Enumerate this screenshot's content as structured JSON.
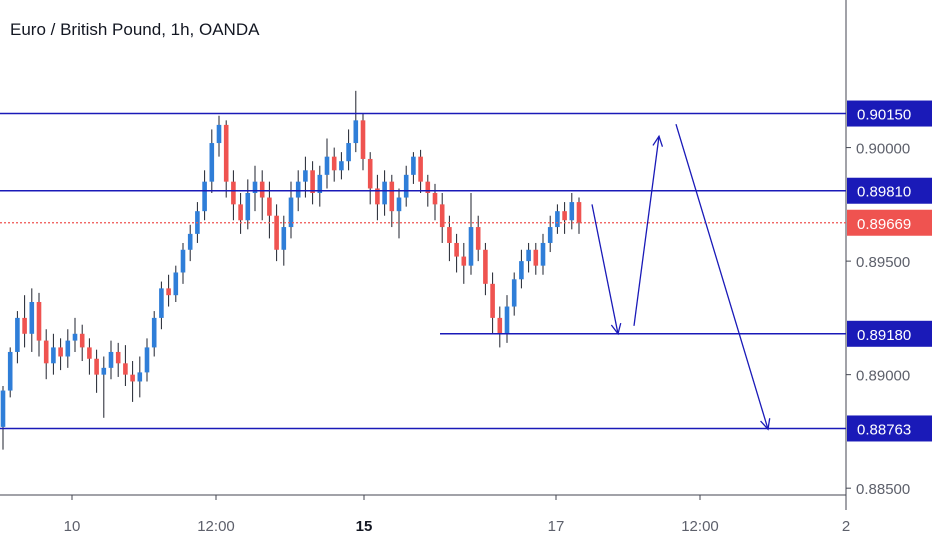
{
  "header": {
    "title": "Euro / British Pound, 1h, OANDA"
  },
  "colors": {
    "up": "#2f7ed8",
    "down": "#ef5350",
    "level_line": "#1a1ab8",
    "current_price": "#ef5350",
    "axis_text": "#5d606b",
    "grid": "#e0e3eb"
  },
  "chart_data": {
    "type": "candlestick",
    "title": "Euro / British Pound, 1h, OANDA",
    "symbol": "EURGBP",
    "timeframe": "1h",
    "source": "OANDA",
    "x_tick_labels": [
      "10",
      "12:00",
      "15",
      "17",
      "12:00",
      "2"
    ],
    "y_tick_labels": [
      "0.90000",
      "0.89500",
      "0.89000",
      "0.88500"
    ],
    "y_ticks": [
      0.9,
      0.895,
      0.89,
      0.885
    ],
    "ylim": [
      0.8847,
      0.9065
    ],
    "levels": [
      {
        "name": "resistance-high",
        "value": 0.9015,
        "label": "0.90150",
        "extent": "full"
      },
      {
        "name": "resistance",
        "value": 0.8981,
        "label": "0.89810",
        "extent": "full"
      },
      {
        "name": "support",
        "value": 0.8918,
        "label": "0.89180",
        "extent": "partial"
      },
      {
        "name": "support-low",
        "value": 0.88763,
        "label": "0.88763",
        "extent": "full"
      }
    ],
    "current_price": {
      "value": 0.89669,
      "label": "0.89669"
    },
    "projection_path": [
      0.8975,
      0.8918,
      0.9005,
      0.8876
    ],
    "candles": [
      [
        0.8877,
        0.8893,
        0.8867,
        0.8895
      ],
      [
        0.8893,
        0.891,
        0.889,
        0.8912
      ],
      [
        0.891,
        0.8925,
        0.8905,
        0.8928
      ],
      [
        0.8925,
        0.8918,
        0.8912,
        0.8935
      ],
      [
        0.8918,
        0.8932,
        0.891,
        0.8938
      ],
      [
        0.8932,
        0.8915,
        0.8908,
        0.8936
      ],
      [
        0.8915,
        0.8905,
        0.8898,
        0.892
      ],
      [
        0.8905,
        0.8912,
        0.89,
        0.8918
      ],
      [
        0.8912,
        0.8908,
        0.8902,
        0.8916
      ],
      [
        0.8908,
        0.8915,
        0.8903,
        0.892
      ],
      [
        0.8915,
        0.8918,
        0.891,
        0.8925
      ],
      [
        0.8918,
        0.8912,
        0.8906,
        0.8922
      ],
      [
        0.8912,
        0.8907,
        0.89,
        0.8916
      ],
      [
        0.8907,
        0.89,
        0.8892,
        0.8911
      ],
      [
        0.89,
        0.8903,
        0.8881,
        0.8908
      ],
      [
        0.8903,
        0.891,
        0.8898,
        0.8915
      ],
      [
        0.891,
        0.8905,
        0.8899,
        0.8914
      ],
      [
        0.8905,
        0.89,
        0.8895,
        0.8913
      ],
      [
        0.89,
        0.8897,
        0.8888,
        0.8906
      ],
      [
        0.8897,
        0.8901,
        0.889,
        0.8908
      ],
      [
        0.8901,
        0.8912,
        0.8897,
        0.8916
      ],
      [
        0.8912,
        0.8925,
        0.8908,
        0.8928
      ],
      [
        0.8925,
        0.8938,
        0.892,
        0.8941
      ],
      [
        0.8938,
        0.8935,
        0.893,
        0.8944
      ],
      [
        0.8935,
        0.8945,
        0.8932,
        0.8948
      ],
      [
        0.8945,
        0.8955,
        0.894,
        0.8958
      ],
      [
        0.8955,
        0.8962,
        0.895,
        0.8966
      ],
      [
        0.8962,
        0.8972,
        0.8958,
        0.8976
      ],
      [
        0.8972,
        0.8985,
        0.8968,
        0.899
      ],
      [
        0.8985,
        0.9002,
        0.898,
        0.9008
      ],
      [
        0.9002,
        0.901,
        0.8996,
        0.9014
      ],
      [
        0.901,
        0.8985,
        0.8978,
        0.9012
      ],
      [
        0.8985,
        0.8975,
        0.8968,
        0.899
      ],
      [
        0.8975,
        0.8968,
        0.8962,
        0.898
      ],
      [
        0.8968,
        0.898,
        0.8964,
        0.8986
      ],
      [
        0.898,
        0.8985,
        0.8972,
        0.8992
      ],
      [
        0.8985,
        0.8978,
        0.8968,
        0.899
      ],
      [
        0.8978,
        0.897,
        0.896,
        0.8985
      ],
      [
        0.897,
        0.8955,
        0.895,
        0.8975
      ],
      [
        0.8955,
        0.8965,
        0.8948,
        0.897
      ],
      [
        0.8965,
        0.8978,
        0.896,
        0.8985
      ],
      [
        0.8978,
        0.8985,
        0.8972,
        0.899
      ],
      [
        0.8985,
        0.899,
        0.8978,
        0.8996
      ],
      [
        0.899,
        0.898,
        0.8975,
        0.8994
      ],
      [
        0.898,
        0.8988,
        0.8974,
        0.8992
      ],
      [
        0.8988,
        0.8996,
        0.8982,
        0.9004
      ],
      [
        0.8996,
        0.899,
        0.8985,
        0.9
      ],
      [
        0.899,
        0.8994,
        0.8986,
        0.8998
      ],
      [
        0.8994,
        0.9002,
        0.899,
        0.9008
      ],
      [
        0.9002,
        0.9012,
        0.8998,
        0.9025
      ],
      [
        0.9012,
        0.8995,
        0.899,
        0.9015
      ],
      [
        0.8995,
        0.8982,
        0.8975,
        0.8998
      ],
      [
        0.8982,
        0.8975,
        0.8968,
        0.8988
      ],
      [
        0.8975,
        0.8985,
        0.897,
        0.899
      ],
      [
        0.8985,
        0.8972,
        0.8965,
        0.8988
      ],
      [
        0.8972,
        0.8978,
        0.896,
        0.8982
      ],
      [
        0.8978,
        0.8988,
        0.8974,
        0.8992
      ],
      [
        0.8988,
        0.8996,
        0.8984,
        0.8998
      ],
      [
        0.8996,
        0.8985,
        0.898,
        0.8999
      ],
      [
        0.8985,
        0.898,
        0.8974,
        0.8988
      ],
      [
        0.898,
        0.8975,
        0.8968,
        0.8984
      ],
      [
        0.8975,
        0.8965,
        0.8958,
        0.898
      ],
      [
        0.8965,
        0.8958,
        0.895,
        0.897
      ],
      [
        0.8958,
        0.8952,
        0.8945,
        0.8962
      ],
      [
        0.8952,
        0.8948,
        0.894,
        0.8958
      ],
      [
        0.8948,
        0.8965,
        0.8944,
        0.898
      ],
      [
        0.8965,
        0.8955,
        0.895,
        0.897
      ],
      [
        0.8955,
        0.894,
        0.8935,
        0.8958
      ],
      [
        0.894,
        0.8925,
        0.8918,
        0.8945
      ],
      [
        0.8925,
        0.8918,
        0.8912,
        0.893
      ],
      [
        0.8918,
        0.893,
        0.8914,
        0.8935
      ],
      [
        0.893,
        0.8942,
        0.8926,
        0.8945
      ],
      [
        0.8942,
        0.895,
        0.8938,
        0.8955
      ],
      [
        0.895,
        0.8955,
        0.8945,
        0.8958
      ],
      [
        0.8955,
        0.8948,
        0.8944,
        0.8958
      ],
      [
        0.8948,
        0.8958,
        0.8944,
        0.8962
      ],
      [
        0.8958,
        0.8965,
        0.8954,
        0.897
      ],
      [
        0.8965,
        0.8972,
        0.8962,
        0.8975
      ],
      [
        0.8972,
        0.8968,
        0.8962,
        0.8976
      ],
      [
        0.8968,
        0.8976,
        0.8964,
        0.898
      ],
      [
        0.8976,
        0.8967,
        0.8962,
        0.8978
      ]
    ]
  },
  "axis": {
    "price_labels": [
      "0.90000",
      "0.89500",
      "0.89000",
      "0.88500"
    ],
    "time_labels": [
      "10",
      "12:00",
      "15",
      "17",
      "12:00",
      "2"
    ]
  }
}
